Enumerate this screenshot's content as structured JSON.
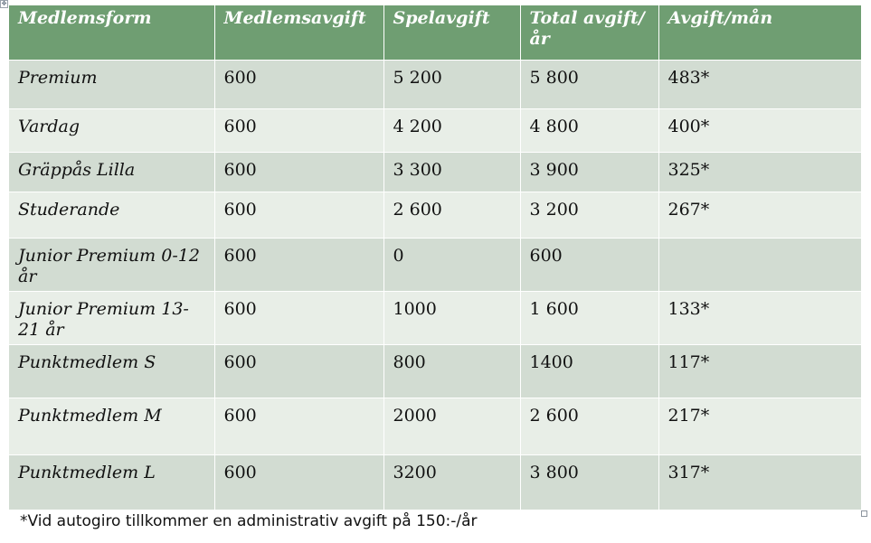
{
  "table": {
    "headers": [
      "Medlemsform",
      "Medlemsavgift",
      "Spelavgift",
      "Total avgift/år",
      "Avgift/mån"
    ],
    "rows": [
      [
        "Premium",
        "600",
        "5 200",
        "5 800",
        "483*"
      ],
      [
        "Vardag",
        "600",
        "4 200",
        "4 800",
        "400*"
      ],
      [
        "Gräppås Lilla",
        "600",
        "3 300",
        "3 900",
        "325*"
      ],
      [
        "Studerande",
        "600",
        "2 600",
        "3 200",
        "267*"
      ],
      [
        "Junior Premium 0-12 år",
        "600",
        "0",
        "600",
        ""
      ],
      [
        "Junior Premium 13-21 år",
        "600",
        "1000",
        "1 600",
        "133*"
      ],
      [
        "Punktmedlem S",
        "600",
        "800",
        "1400",
        "117*"
      ],
      [
        "Punktmedlem M",
        "600",
        "2000",
        "2 600",
        "217*"
      ],
      [
        "Punktmedlem L",
        "600",
        "3200",
        "3 800",
        "317*"
      ]
    ]
  },
  "footnote": "*Vid autogiro tillkommer en administrativ avgift på 150:-/år",
  "colors": {
    "header_bg": "#6f9e72",
    "row_odd_bg": "#d2dcd2",
    "row_even_bg": "#e8eee7",
    "border": "#ffffff"
  },
  "icons": {
    "table_move_handle": "move-handle-icon",
    "table_resize_handle": "resize-handle-icon"
  }
}
